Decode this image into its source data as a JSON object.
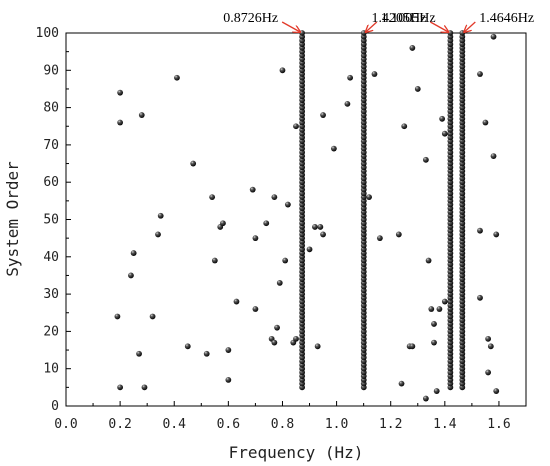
{
  "chart_data": {
    "type": "scatter",
    "title": "",
    "xlabel": "Frequency (Hz)",
    "ylabel": "System Order",
    "xlim": [
      0.0,
      1.7
    ],
    "ylim": [
      0,
      100
    ],
    "x_ticks": [
      "0.0",
      "0.2",
      "0.4",
      "0.6",
      "0.8",
      "1.0",
      "1.2",
      "1.4",
      "1.6"
    ],
    "y_ticks": [
      "0",
      "10",
      "20",
      "30",
      "40",
      "50",
      "60",
      "70",
      "80",
      "90",
      "100"
    ],
    "grid": false,
    "colors": {
      "points": "#111111",
      "lines": "#e23a2a",
      "arrows": "#e23a2a"
    },
    "marker": "sphere",
    "stable_frequencies": [
      {
        "frequency": 0.8726,
        "label": "0.8726Hz"
      },
      {
        "frequency": 1.1005,
        "label": "1.1005Hz"
      },
      {
        "frequency": 1.4205,
        "label": "1.4205Hz"
      },
      {
        "frequency": 1.4646,
        "label": "1.4646Hz"
      }
    ],
    "stable_order_range": [
      5,
      100
    ],
    "stable_order_step": 1,
    "scattered_points": [
      {
        "x": 0.2,
        "y": 84
      },
      {
        "x": 0.2,
        "y": 76
      },
      {
        "x": 0.19,
        "y": 24
      },
      {
        "x": 0.2,
        "y": 5
      },
      {
        "x": 0.24,
        "y": 35
      },
      {
        "x": 0.25,
        "y": 41
      },
      {
        "x": 0.27,
        "y": 14
      },
      {
        "x": 0.28,
        "y": 78
      },
      {
        "x": 0.29,
        "y": 5
      },
      {
        "x": 0.32,
        "y": 24
      },
      {
        "x": 0.34,
        "y": 46
      },
      {
        "x": 0.35,
        "y": 51
      },
      {
        "x": 0.41,
        "y": 88
      },
      {
        "x": 0.45,
        "y": 16
      },
      {
        "x": 0.47,
        "y": 65
      },
      {
        "x": 0.52,
        "y": 14
      },
      {
        "x": 0.54,
        "y": 56
      },
      {
        "x": 0.55,
        "y": 39
      },
      {
        "x": 0.57,
        "y": 48
      },
      {
        "x": 0.58,
        "y": 49
      },
      {
        "x": 0.6,
        "y": 15
      },
      {
        "x": 0.6,
        "y": 7
      },
      {
        "x": 0.63,
        "y": 28
      },
      {
        "x": 0.69,
        "y": 58
      },
      {
        "x": 0.7,
        "y": 45
      },
      {
        "x": 0.7,
        "y": 26
      },
      {
        "x": 0.74,
        "y": 49
      },
      {
        "x": 0.76,
        "y": 18
      },
      {
        "x": 0.77,
        "y": 56
      },
      {
        "x": 0.77,
        "y": 17
      },
      {
        "x": 0.78,
        "y": 21
      },
      {
        "x": 0.79,
        "y": 33
      },
      {
        "x": 0.8,
        "y": 90
      },
      {
        "x": 0.81,
        "y": 39
      },
      {
        "x": 0.82,
        "y": 54
      },
      {
        "x": 0.84,
        "y": 17
      },
      {
        "x": 0.85,
        "y": 75
      },
      {
        "x": 0.85,
        "y": 18
      },
      {
        "x": 0.9,
        "y": 42
      },
      {
        "x": 0.92,
        "y": 48
      },
      {
        "x": 0.93,
        "y": 16
      },
      {
        "x": 0.94,
        "y": 48
      },
      {
        "x": 0.95,
        "y": 78
      },
      {
        "x": 0.95,
        "y": 46
      },
      {
        "x": 0.99,
        "y": 69
      },
      {
        "x": 1.04,
        "y": 81
      },
      {
        "x": 1.05,
        "y": 88
      },
      {
        "x": 1.12,
        "y": 56
      },
      {
        "x": 1.14,
        "y": 89
      },
      {
        "x": 1.16,
        "y": 45
      },
      {
        "x": 1.23,
        "y": 46
      },
      {
        "x": 1.24,
        "y": 6
      },
      {
        "x": 1.25,
        "y": 75
      },
      {
        "x": 1.27,
        "y": 16
      },
      {
        "x": 1.28,
        "y": 16
      },
      {
        "x": 1.28,
        "y": 96
      },
      {
        "x": 1.3,
        "y": 85
      },
      {
        "x": 1.33,
        "y": 2
      },
      {
        "x": 1.33,
        "y": 66
      },
      {
        "x": 1.34,
        "y": 39
      },
      {
        "x": 1.35,
        "y": 26
      },
      {
        "x": 1.36,
        "y": 22
      },
      {
        "x": 1.36,
        "y": 17
      },
      {
        "x": 1.37,
        "y": 4
      },
      {
        "x": 1.38,
        "y": 26
      },
      {
        "x": 1.39,
        "y": 77
      },
      {
        "x": 1.4,
        "y": 73
      },
      {
        "x": 1.4,
        "y": 28
      },
      {
        "x": 1.53,
        "y": 89
      },
      {
        "x": 1.53,
        "y": 47
      },
      {
        "x": 1.53,
        "y": 29
      },
      {
        "x": 1.55,
        "y": 76
      },
      {
        "x": 1.56,
        "y": 18
      },
      {
        "x": 1.56,
        "y": 9
      },
      {
        "x": 1.57,
        "y": 16
      },
      {
        "x": 1.58,
        "y": 99
      },
      {
        "x": 1.58,
        "y": 67
      },
      {
        "x": 1.59,
        "y": 46
      },
      {
        "x": 1.59,
        "y": 4
      }
    ]
  }
}
